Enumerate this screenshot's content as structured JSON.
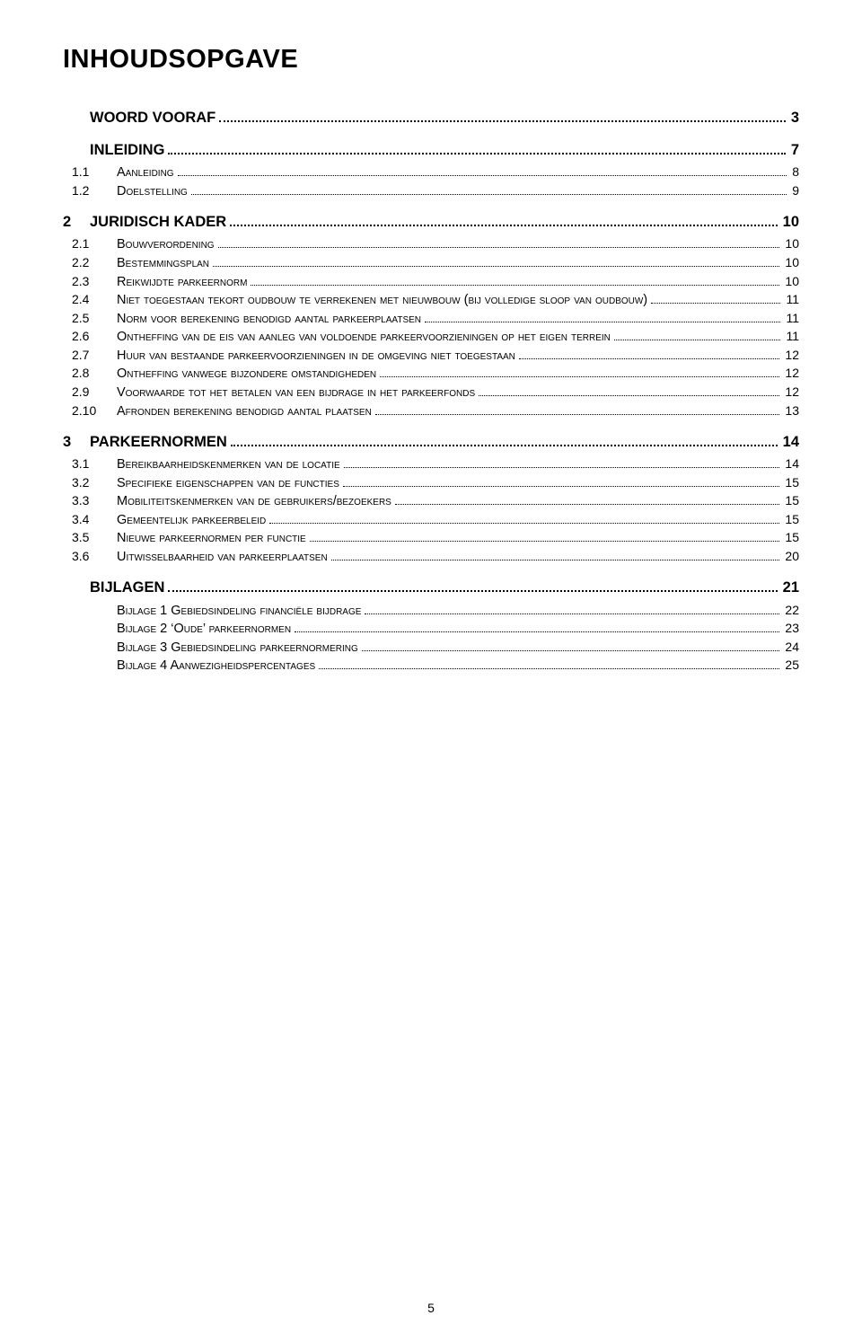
{
  "title": "INHOUDSOPGAVE",
  "page_number": "5",
  "entries": [
    {
      "level": "bold-nonum",
      "num": "",
      "label": "WOORD VOORAF",
      "page": "3"
    },
    {
      "level": "bold-nonum",
      "num": "",
      "label": "INLEIDING",
      "page": "7"
    },
    {
      "level": "sub",
      "num": "1.1",
      "label": "Aanleiding",
      "page": "8"
    },
    {
      "level": "sub",
      "num": "1.2",
      "label": "Doelstelling",
      "page": "9"
    },
    {
      "level": "bold",
      "num": "2",
      "label": "JURIDISCH KADER",
      "page": "10"
    },
    {
      "level": "sub",
      "num": "2.1",
      "label": "Bouwverordening",
      "page": "10"
    },
    {
      "level": "sub",
      "num": "2.2",
      "label": "Bestemmingsplan",
      "page": "10"
    },
    {
      "level": "sub",
      "num": "2.3",
      "label": "Reikwijdte parkeernorm",
      "page": "10"
    },
    {
      "level": "sub",
      "num": "2.4",
      "label": "Niet toegestaan tekort oudbouw te verrekenen met nieuwbouw (bij volledige sloop van oudbouw)",
      "page": "11"
    },
    {
      "level": "sub",
      "num": "2.5",
      "label": "Norm voor berekening benodigd aantal parkeerplaatsen",
      "page": "11"
    },
    {
      "level": "sub",
      "num": "2.6",
      "label": "Ontheffing van de eis van aanleg van voldoende parkeervoorzieningen op het eigen terrein",
      "page": "11"
    },
    {
      "level": "sub",
      "num": "2.7",
      "label": "Huur van bestaande parkeervoorzieningen in de omgeving niet toegestaan",
      "page": "12"
    },
    {
      "level": "sub",
      "num": "2.8",
      "label": "Ontheffing vanwege bijzondere omstandigheden",
      "page": "12"
    },
    {
      "level": "sub",
      "num": "2.9",
      "label": "Voorwaarde tot het betalen van een bijdrage in het parkeerfonds",
      "page": "12"
    },
    {
      "level": "sub",
      "num": "2.10",
      "label": "Afronden berekening benodigd aantal plaatsen",
      "page": "13"
    },
    {
      "level": "bold",
      "num": "3",
      "label": "PARKEERNORMEN",
      "page": "14"
    },
    {
      "level": "sub",
      "num": "3.1",
      "label": "Bereikbaarheidskenmerken van de locatie",
      "page": "14"
    },
    {
      "level": "sub",
      "num": "3.2",
      "label": "Specifieke eigenschappen van de functies",
      "page": "15"
    },
    {
      "level": "sub",
      "num": "3.3",
      "label": "Mobiliteitskenmerken van de gebruikers/bezoekers",
      "page": "15"
    },
    {
      "level": "sub",
      "num": "3.4",
      "label": "Gemeentelijk parkeerbeleid",
      "page": "15"
    },
    {
      "level": "sub",
      "num": "3.5",
      "label": "Nieuwe parkeernormen per functie",
      "page": "15"
    },
    {
      "level": "sub",
      "num": "3.6",
      "label": "Uitwisselbaarheid van parkeerplaatsen",
      "page": "20"
    },
    {
      "level": "bold-nonum",
      "num": "",
      "label": "BIJLAGEN",
      "page": "21"
    },
    {
      "level": "sub",
      "num": "",
      "label": "Bijlage 1 Gebiedsindeling financiële bijdrage",
      "page": "22"
    },
    {
      "level": "sub",
      "num": "",
      "label": "Bijlage 2 ‘Oude’ parkeernormen",
      "page": "23"
    },
    {
      "level": "sub",
      "num": "",
      "label": "Bijlage 3 Gebiedsindeling parkeernormering",
      "page": "24"
    },
    {
      "level": "sub",
      "num": "",
      "label": "Bijlage 4 Aanwezigheidspercentages",
      "page": "25"
    }
  ]
}
